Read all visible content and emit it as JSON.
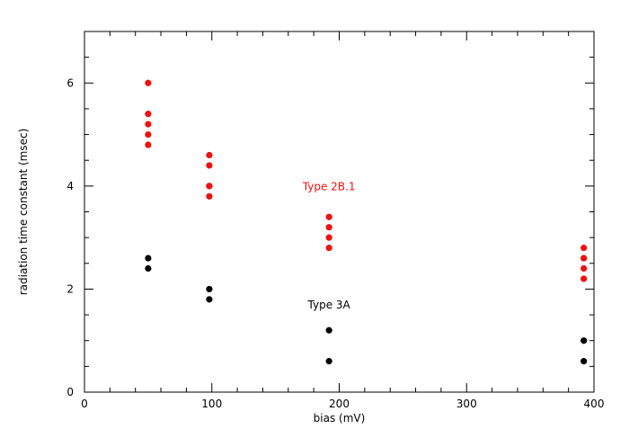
{
  "chart_data": {
    "type": "scatter",
    "xlabel": "bias (mV)",
    "ylabel": "radiation time constant (msec)",
    "xlim": [
      0,
      400
    ],
    "ylim": [
      0,
      7
    ],
    "xticks": [
      "0",
      "100",
      "200",
      "300",
      "400"
    ],
    "yticks": [
      "0",
      "2",
      "4",
      "6"
    ],
    "grid": false,
    "series": [
      {
        "name": "Type 2B.1",
        "color": "#ee1111",
        "x": [
          50,
          50,
          50,
          50,
          50,
          98,
          98,
          98,
          98,
          98,
          192,
          192,
          192,
          192,
          392,
          392,
          392,
          392,
          392
        ],
        "y": [
          6.0,
          5.4,
          5.2,
          5.0,
          4.8,
          4.6,
          4.4,
          4.0,
          4.0,
          3.8,
          3.4,
          3.2,
          3.0,
          2.8,
          2.8,
          2.6,
          2.6,
          2.4,
          2.2
        ]
      },
      {
        "name": "Type 3A",
        "color": "#000000",
        "x": [
          50,
          50,
          98,
          98,
          192,
          192,
          392,
          392
        ],
        "y": [
          2.6,
          2.4,
          2.0,
          1.8,
          1.2,
          0.6,
          1.0,
          0.6
        ]
      }
    ]
  }
}
